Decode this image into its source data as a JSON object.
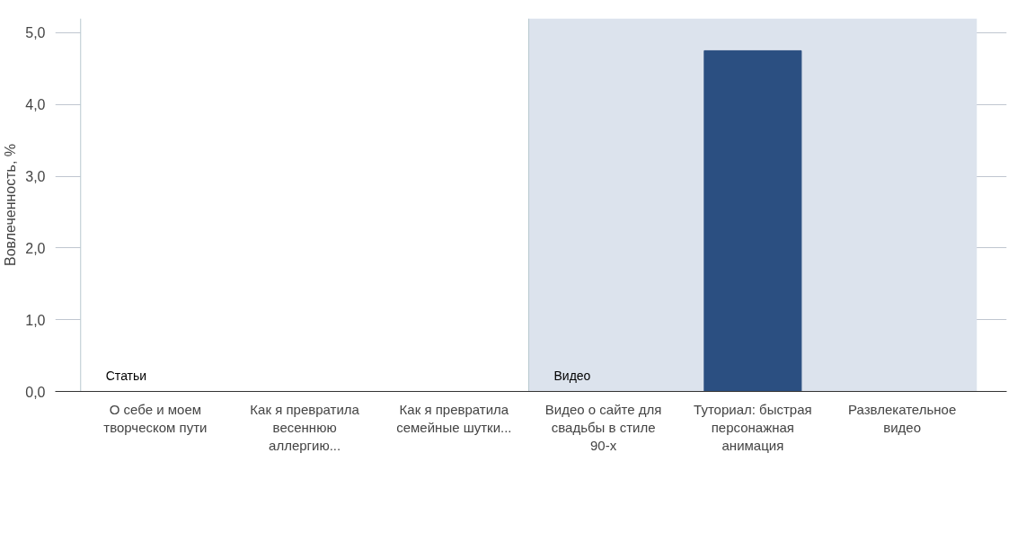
{
  "chart_data": {
    "type": "bar",
    "ylabel": "Вовлеченность, %",
    "categories": [
      "О себе и моем творческом пути",
      "Как я превратила весеннюю аллергию...",
      "Как я превратила семейные шутки...",
      "Видео о сайте для свадьбы в стиле 90-х",
      "Туториал: быстрая персонажная анимация",
      "Развлекательное видео"
    ],
    "values": [
      0,
      0,
      0,
      0,
      4.75,
      0
    ],
    "color": "#2b4f81",
    "ylim": [
      0,
      5.2
    ],
    "yticks": [
      {
        "value": 0,
        "label": "0,0"
      },
      {
        "value": 1,
        "label": "1,0"
      },
      {
        "value": 2,
        "label": "2,0"
      },
      {
        "value": 3,
        "label": "3,0"
      },
      {
        "value": 4,
        "label": "4,0"
      },
      {
        "value": 5,
        "label": "5,0"
      }
    ],
    "grid": "y",
    "bands": [
      {
        "axis": "x",
        "from": "О себе и моем творческом пути",
        "to": "Как я превратила семейные шутки...",
        "label": "Статьи",
        "color": "#ffffff"
      },
      {
        "axis": "x",
        "from": "Видео о сайте для свадьбы в стиле 90-х",
        "to": "Развлекательное видео",
        "label": "Видео",
        "color": "#dce3ed"
      }
    ]
  }
}
